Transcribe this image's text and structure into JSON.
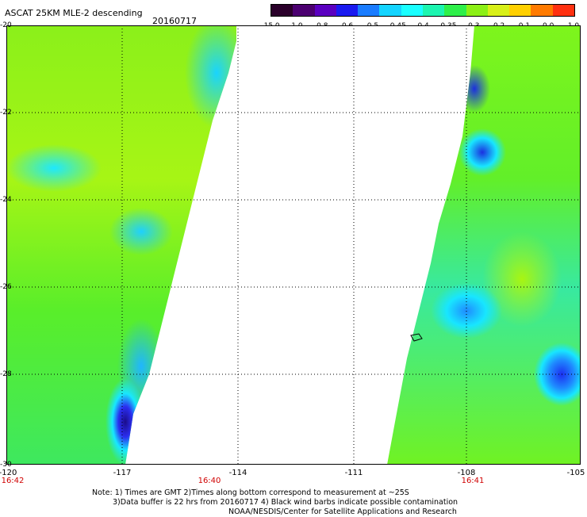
{
  "title": "ASCAT 25KM MLE-2 descending",
  "date": "20160717",
  "colorbar": {
    "labels": [
      "-15.0",
      "-1.0",
      "-0.8",
      "-0.6",
      "-0.5",
      "-0.45",
      "-0.4",
      "-0.35",
      "-0.3",
      "-0.2",
      "-0.1",
      "0.0",
      "1.0"
    ],
    "colors": [
      "#2a002a",
      "#4b0070",
      "#5a00c0",
      "#1a1af0",
      "#1a7cff",
      "#14d4ff",
      "#1affff",
      "#1cf5b0",
      "#2ef04a",
      "#8cf016",
      "#d8f018",
      "#ffd000",
      "#ff7a00",
      "#ff3010"
    ]
  },
  "y_axis": {
    "labels": [
      "-20",
      "-22",
      "-24",
      "-26",
      "-28",
      "-30"
    ]
  },
  "x_axis": {
    "labels": [
      "-120",
      "-117",
      "-114",
      "-111",
      "-108",
      "-105"
    ]
  },
  "times": [
    "16:42",
    "16:40",
    "16:41"
  ],
  "note": {
    "line1": "Note: 1) Times are GMT 2)Times along bottom correspond to measurement at ~25S",
    "line2": "3)Data buffer is 22 hrs from 20160717 4) Black wind barbs indicate possible contamination",
    "line3": "NOAA/NESDIS/Center for Satellite Applications and Research"
  }
}
